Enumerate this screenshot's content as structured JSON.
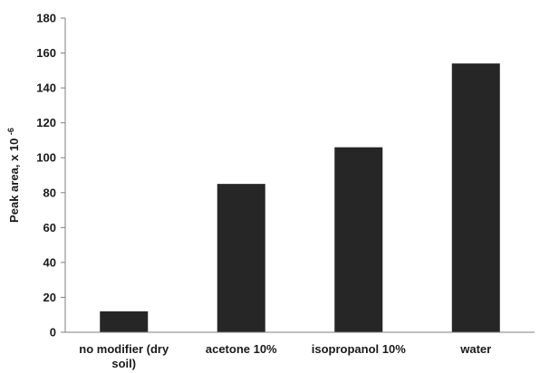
{
  "chart_data": {
    "type": "bar",
    "title": "",
    "xlabel": "",
    "ylabel": "Peak area, x 10",
    "ylabel_exponent": "-6",
    "categories": [
      [
        "no modifier (dry",
        "soil)"
      ],
      [
        "acetone 10%"
      ],
      [
        "isopropanol 10%"
      ],
      [
        "water"
      ]
    ],
    "values": [
      12,
      85,
      106,
      154
    ],
    "ylim": [
      0,
      180
    ],
    "yticks": [
      0,
      20,
      40,
      60,
      80,
      100,
      120,
      140,
      160,
      180
    ],
    "grid": false,
    "bar_color": "#262626",
    "axis_color": "#7f7f7f"
  }
}
